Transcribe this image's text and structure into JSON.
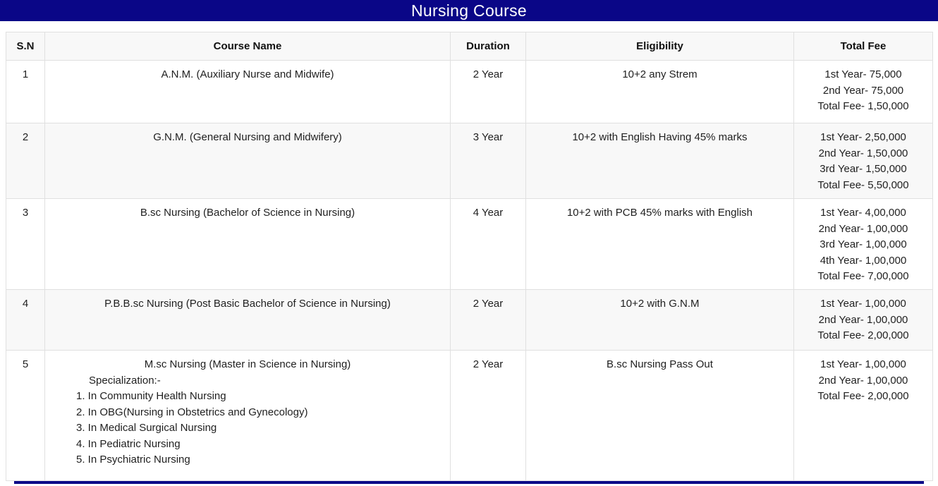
{
  "title": "Nursing Course",
  "accent_color": "#0A0687",
  "table": {
    "headers": [
      "S.N",
      "Course Name",
      "Duration",
      "Eligibility",
      "Total Fee"
    ],
    "rows": [
      {
        "sn": "1",
        "course": "A.N.M. (Auxiliary Nurse and Midwife)",
        "specialization_label": "",
        "specializations": [],
        "duration": "2 Year",
        "eligibility": "10+2 any Strem",
        "fees": [
          "1st Year- 75,000",
          "2nd Year- 75,000",
          "Total Fee- 1,50,000"
        ]
      },
      {
        "sn": "2",
        "course": "G.N.M. (General Nursing and Midwifery)",
        "specialization_label": "",
        "specializations": [],
        "duration": "3 Year",
        "eligibility": "10+2 with English Having 45% marks",
        "fees": [
          "1st Year- 2,50,000",
          "2nd Year- 1,50,000",
          "3rd Year- 1,50,000",
          "Total Fee- 5,50,000"
        ]
      },
      {
        "sn": "3",
        "course": "B.sc Nursing (Bachelor of Science in Nursing)",
        "specialization_label": "",
        "specializations": [],
        "duration": "4 Year",
        "eligibility": "10+2 with PCB 45% marks with English",
        "fees": [
          "1st Year- 4,00,000",
          "2nd Year- 1,00,000",
          "3rd Year- 1,00,000",
          "4th Year- 1,00,000",
          "Total Fee- 7,00,000"
        ]
      },
      {
        "sn": "4",
        "course": "P.B.B.sc Nursing (Post Basic Bachelor of Science in Nursing)",
        "specialization_label": "",
        "specializations": [],
        "duration": "2 Year",
        "eligibility": "10+2 with G.N.M",
        "fees": [
          "1st Year- 1,00,000",
          "2nd Year- 1,00,000",
          "Total Fee- 2,00,000"
        ]
      },
      {
        "sn": "5",
        "course": "M.sc Nursing (Master in Science in Nursing)",
        "specialization_label": "Specialization:-",
        "specializations": [
          "1. In Community Health Nursing",
          "2. In OBG(Nursing in Obstetrics and Gynecology)",
          "3. In Medical Surgical Nursing",
          "4. In Pediatric Nursing",
          "5. In Psychiatric Nursing"
        ],
        "duration": "2 Year",
        "eligibility": "B.sc Nursing Pass Out",
        "fees": [
          "1st Year- 1,00,000",
          "2nd Year- 1,00,000",
          "Total Fee- 2,00,000"
        ]
      }
    ]
  }
}
